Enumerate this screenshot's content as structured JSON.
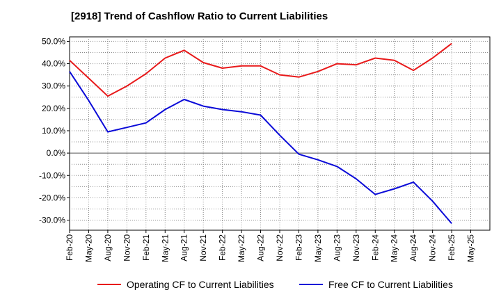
{
  "chart_data": {
    "type": "line",
    "title": "[2918]  Trend of Cashflow Ratio to Current Liabilities",
    "x_ticks": [
      "Feb-20",
      "May-20",
      "Aug-20",
      "Nov-20",
      "Feb-21",
      "May-21",
      "Aug-21",
      "Nov-21",
      "Feb-22",
      "May-22",
      "Aug-22",
      "Nov-22",
      "Feb-23",
      "May-23",
      "Aug-23",
      "Nov-23",
      "Feb-24",
      "May-24",
      "Aug-24",
      "Nov-24",
      "Feb-25",
      "May-25"
    ],
    "x": [
      "Feb-20",
      "May-20",
      "Aug-20",
      "Nov-20",
      "Feb-21",
      "May-21",
      "Aug-21",
      "Nov-21",
      "Feb-22",
      "May-22",
      "Aug-22",
      "Nov-22",
      "Feb-23",
      "May-23",
      "Aug-23",
      "Nov-23",
      "Feb-24",
      "May-24",
      "Aug-24",
      "Nov-24",
      "Feb-25"
    ],
    "y_ticks": [
      "50.0%",
      "40.0%",
      "30.0%",
      "20.0%",
      "10.0%",
      "0.0%",
      "-10.0%",
      "-20.0%",
      "-30.0%"
    ],
    "y_tick_values": [
      50,
      40,
      30,
      20,
      10,
      0,
      -10,
      -20,
      -30
    ],
    "ylim": [
      -34.5,
      52
    ],
    "grid": true,
    "legend_position": "bottom",
    "series": [
      {
        "name": "Operating CF to Current Liabilities",
        "color": "#e8191a",
        "values": [
          41.5,
          33.5,
          25.5,
          30.0,
          35.5,
          42.5,
          46.0,
          40.5,
          38.0,
          39.0,
          39.0,
          35.0,
          34.0,
          36.5,
          40.0,
          39.5,
          42.5,
          41.5,
          37.0,
          42.5,
          49.0
        ]
      },
      {
        "name": "Free CF to Current Liabilities",
        "color": "#0a0ad8",
        "values": [
          36.5,
          23.5,
          9.5,
          11.5,
          13.5,
          19.5,
          24.0,
          21.0,
          19.5,
          18.5,
          17.0,
          8.0,
          -0.5,
          -3.0,
          -6.0,
          -11.5,
          -18.5,
          -16.0,
          -13.0,
          -21.5,
          -31.5
        ]
      }
    ]
  }
}
